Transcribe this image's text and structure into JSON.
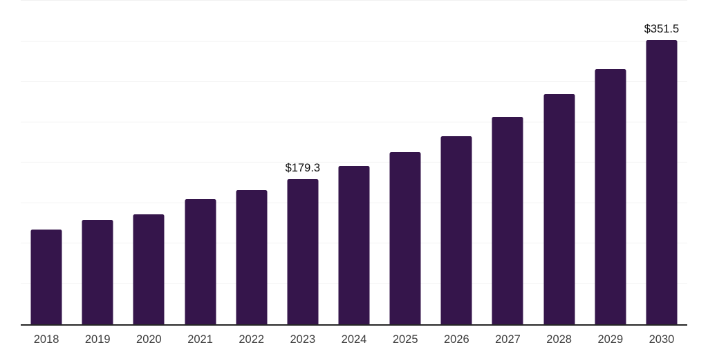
{
  "chart_data": {
    "type": "bar",
    "title": "",
    "xlabel": "",
    "ylabel": "",
    "legend": "none",
    "grid": "horizontal-only",
    "categories": [
      "2018",
      "2019",
      "2020",
      "2021",
      "2022",
      "2023",
      "2024",
      "2025",
      "2026",
      "2027",
      "2028",
      "2029",
      "2030"
    ],
    "values": [
      117,
      129,
      135.5,
      155,
      165.5,
      179.3,
      195.5,
      213,
      232.5,
      256.5,
      284.5,
      315,
      351.5
    ],
    "data_labels": [
      "",
      "",
      "",
      "",
      "",
      "$179.3",
      "",
      "",
      "",
      "",
      "",
      "",
      "$351.5"
    ],
    "ylim": [
      0,
      400
    ],
    "y_gridline_step": 50,
    "y_axis_tick_labels": "none",
    "colors": {
      "bar": "#35154b",
      "gridline": "#f1f1f1",
      "x_axis_line": "#262626",
      "tick_label": "#3d3d3d",
      "data_label": "#0d0d0d",
      "background": "#ffffff"
    }
  }
}
